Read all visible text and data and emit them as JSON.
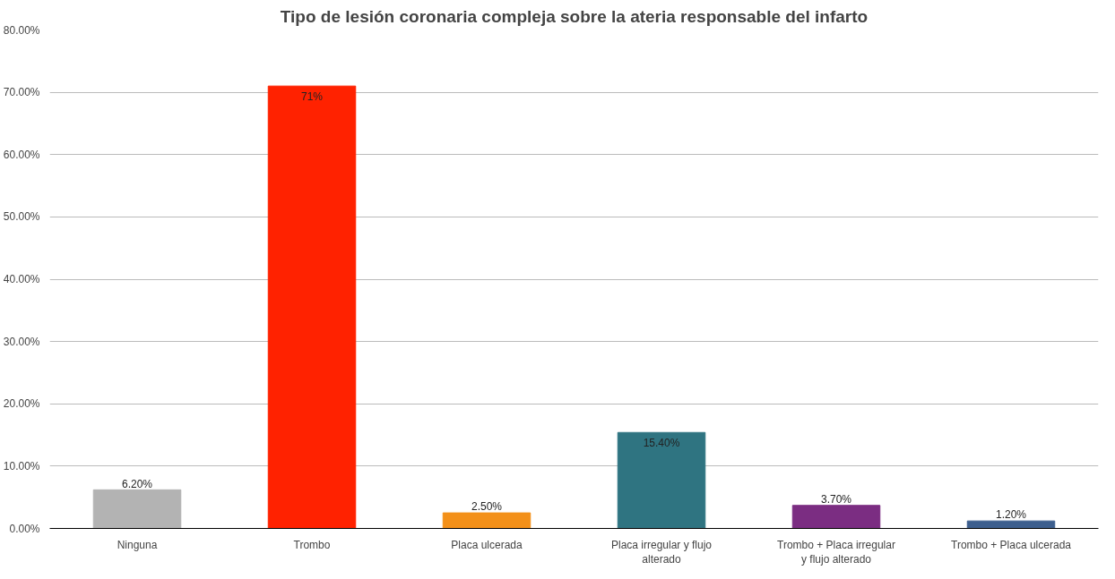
{
  "chart_data": {
    "type": "bar",
    "title": "Tipo de lesión coronaria compleja sobre la ateria responsable del infarto",
    "categories": [
      "Ninguna",
      "Trombo",
      "Placa ulcerada",
      "Placa irregular y flujo alterado",
      "Trombo + Placa irregular y flujo alterado",
      "Trombo + Placa ulcerada"
    ],
    "values": [
      6.2,
      71,
      2.5,
      15.4,
      3.7,
      1.2
    ],
    "colors": [
      "#b3b3b3",
      "#ff2200",
      "#f39019",
      "#2f7481",
      "#7b2d82",
      "#3d5f8e"
    ],
    "value_labels": [
      "6.20%",
      "71%",
      "2.50%",
      "15.40%",
      "3.70%",
      "1.20%"
    ],
    "ylim": [
      0,
      80
    ],
    "yticks": [
      {
        "value": 0,
        "label": "0.00%"
      },
      {
        "value": 10,
        "label": "10.00%"
      },
      {
        "value": 20,
        "label": "20.00%"
      },
      {
        "value": 30,
        "label": "30.00%"
      },
      {
        "value": 40,
        "label": "40.00%"
      },
      {
        "value": 50,
        "label": "50.00%"
      },
      {
        "value": 60,
        "label": "60.00%"
      },
      {
        "value": 70,
        "label": "70.00%"
      },
      {
        "value": 80,
        "label": "80.00%"
      }
    ],
    "grid": "y"
  }
}
